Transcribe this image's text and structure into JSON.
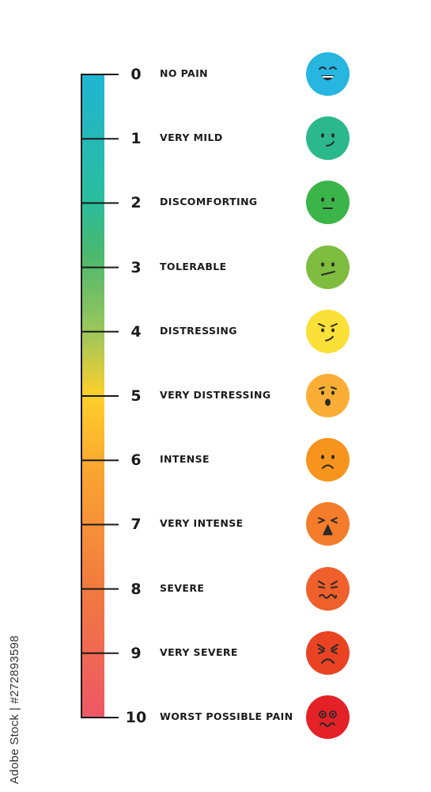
{
  "scale": {
    "gradient_stops": [
      {
        "offset": 0.0,
        "color": "#1fb5d3"
      },
      {
        "offset": 0.2,
        "color": "#2bbd9c"
      },
      {
        "offset": 0.28,
        "color": "#4bb86e"
      },
      {
        "offset": 0.4,
        "color": "#9cc65b"
      },
      {
        "offset": 0.5,
        "color": "#ffcf2a"
      },
      {
        "offset": 0.62,
        "color": "#f9a431"
      },
      {
        "offset": 0.8,
        "color": "#f17a3f"
      },
      {
        "offset": 1.0,
        "color": "#ee5766"
      }
    ],
    "levels": [
      {
        "value": "0",
        "label": "NO PAIN",
        "face_color": "#27b6df",
        "expression": "laughing"
      },
      {
        "value": "1",
        "label": "VERY MILD",
        "face_color": "#2bb98b",
        "expression": "smirk"
      },
      {
        "value": "2",
        "label": "DISCOMFORTING",
        "face_color": "#3bb54a",
        "expression": "neutral"
      },
      {
        "value": "3",
        "label": "TOLERABLE",
        "face_color": "#7ebd3f",
        "expression": "skeptical"
      },
      {
        "value": "4",
        "label": "DISTRESSING",
        "face_color": "#fbe038",
        "expression": "annoyed"
      },
      {
        "value": "5",
        "label": "VERY DISTRESSING",
        "face_color": "#fbae35",
        "expression": "surprised"
      },
      {
        "value": "6",
        "label": "INTENSE",
        "face_color": "#f7941d",
        "expression": "sad"
      },
      {
        "value": "7",
        "label": "VERY INTENSE",
        "face_color": "#f47c2b",
        "expression": "squint-shout"
      },
      {
        "value": "8",
        "label": "SEVERE",
        "face_color": "#f0602b",
        "expression": "wavy"
      },
      {
        "value": "9",
        "label": "VERY SEVERE",
        "face_color": "#ea4324",
        "expression": "angry"
      },
      {
        "value": "10",
        "label": "WORST POSSIBLE PAIN",
        "face_color": "#e42127",
        "expression": "agony"
      }
    ]
  },
  "watermark": {
    "text": "Adobe Stock | #272893598"
  }
}
